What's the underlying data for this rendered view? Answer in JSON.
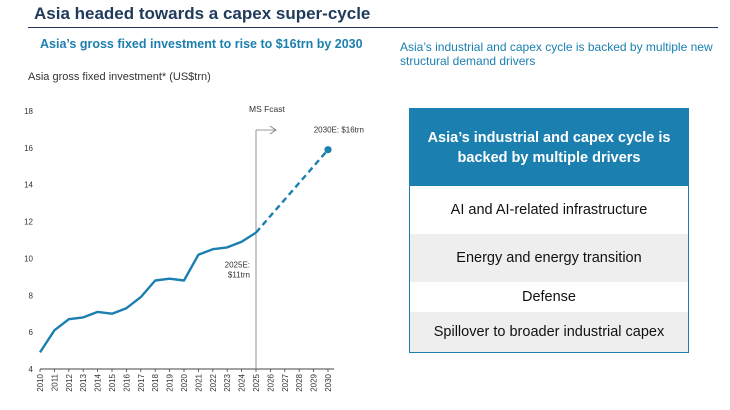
{
  "page_title": "Asia headed towards a capex super-cycle",
  "left_subtitle": "Asia’s gross fixed investment to rise to $16trn by 2030",
  "right_subtitle": "Asia’s industrial and capex cycle is backed by multiple new structural demand drivers",
  "drivers_box": {
    "header": "Asia’s industrial and capex cycle is backed by multiple drivers",
    "items": [
      "AI and AI-related infrastructure",
      "Energy and energy transition",
      "Defense",
      "Spillover to broader industrial capex"
    ]
  },
  "colors": {
    "title": "#1f3a5a",
    "accent": "#1b7fb0",
    "line": "#1b7fb0",
    "shaded_row": "#eeeeee"
  },
  "chart_data": {
    "type": "line",
    "title": "Asia gross fixed investment* (US$trn)",
    "x": [
      2010,
      2011,
      2012,
      2013,
      2014,
      2015,
      2016,
      2017,
      2018,
      2019,
      2020,
      2021,
      2022,
      2023,
      2024,
      2025,
      2026,
      2027,
      2028,
      2029,
      2030
    ],
    "series": [
      {
        "style": "solid",
        "x": [
          2010,
          2011,
          2012,
          2013,
          2014,
          2015,
          2016,
          2017,
          2018,
          2019,
          2020,
          2021,
          2022,
          2023,
          2024,
          2025
        ],
        "values": [
          4.9,
          6.1,
          6.7,
          6.8,
          7.1,
          7.0,
          7.3,
          7.9,
          8.8,
          8.9,
          8.8,
          10.2,
          10.5,
          10.6,
          10.9,
          11.4
        ]
      },
      {
        "style": "dashed",
        "x": [
          2025,
          2026,
          2027,
          2028,
          2029,
          2030
        ],
        "values": [
          11.4,
          12.3,
          13.2,
          14.1,
          15.0,
          15.9
        ]
      }
    ],
    "ylim": [
      4,
      18
    ],
    "yticks": [
      4,
      6,
      8,
      10,
      12,
      14,
      16,
      18
    ],
    "xtick_labels": [
      "2010",
      "2011",
      "2012",
      "2013",
      "2014",
      "2015",
      "2016",
      "2017",
      "2018",
      "2019",
      "2020",
      "2021",
      "2022",
      "2023",
      "2024",
      "2025",
      "2026",
      "2027",
      "2028",
      "2029",
      "2030"
    ],
    "forecast_label": "MS Fcast",
    "forecast_start": 2025,
    "annotations": [
      {
        "x": 2025,
        "y": 11.4,
        "lines": [
          "2025E:",
          "$11trn"
        ]
      },
      {
        "x": 2030,
        "y": 15.9,
        "lines": [
          "2030E: $16trn"
        ]
      }
    ],
    "grid": false
  }
}
